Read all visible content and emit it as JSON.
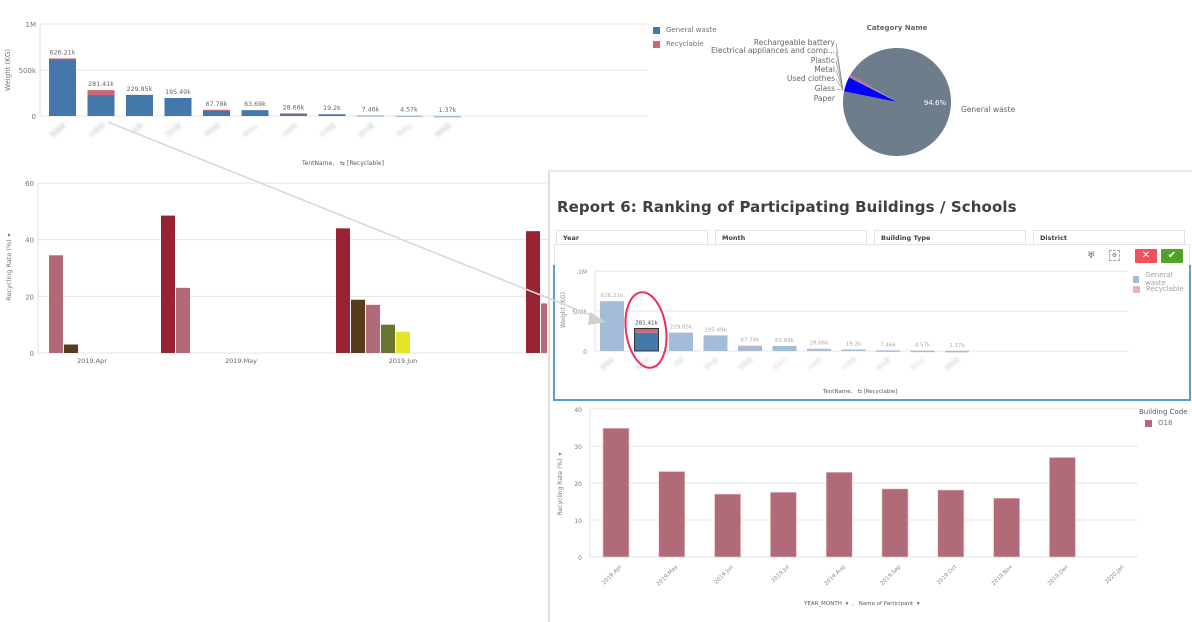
{
  "colors": {
    "general_waste": "#4477aa",
    "recyclable": "#cc6677",
    "general_waste_dim": "#a3bdd8",
    "recyclable_dim": "#e6b3bb",
    "pie_general": "#6e7d8c",
    "pie_paper": "#0000ff",
    "rate_bar": "#b06a78",
    "dark_red": "#962433",
    "dark_brown": "#563c1d",
    "olive": "#6b7532",
    "yellow": "#e3e329",
    "accent_blue": "#5b9ec9",
    "cancel_red": "#f0515a",
    "confirm_green": "#52a329",
    "highlight_circle": "#e8305a"
  },
  "chart_data": [
    {
      "id": "weight-by-tent",
      "type": "bar",
      "stacked": true,
      "title": "",
      "ylabel": "Weight (KG)",
      "xlabel": "TentName,",
      "xlabel_suffix": "[Recyclable]",
      "ylim": [
        0,
        1000000
      ],
      "yticks": [
        "0",
        "500k",
        "1M"
      ],
      "categories": [
        "(blurred)",
        "(blurred)",
        "(blurred)",
        "(blurred)",
        "(blurred)",
        "(blurred)",
        "(blurred)",
        "(blurred)",
        "(blurred)",
        "(blurred)",
        "(blurred)"
      ],
      "category_fragments": [
        "客服家",
        "台渠城",
        "花园",
        "活社家",
        "学院园",
        "市中心",
        "148校",
        "大学园",
        "道大厦",
        "市中心",
        "學院园"
      ],
      "totals": [
        626210,
        281410,
        229850,
        195490,
        67780,
        63690,
        28660,
        19200,
        7460,
        4570,
        1370
      ],
      "total_labels": [
        "626.21k",
        "281.41k",
        "229.85k",
        "195.49k",
        "67.78k",
        "63.69k",
        "28.66k",
        "19.2k",
        "7.46k",
        "4.57k",
        "1.37k"
      ],
      "series": [
        {
          "name": "General waste",
          "values": [
            614000,
            228000,
            229850,
            195490,
            65500,
            63690,
            26500,
            19200,
            7460,
            4570,
            1370
          ]
        },
        {
          "name": "Recyclable",
          "values": [
            12210,
            53410,
            0,
            0,
            2280,
            0,
            2160,
            0,
            0,
            0,
            0
          ]
        }
      ],
      "legend": [
        "General waste",
        "Recyclable"
      ],
      "legend_position": "right"
    },
    {
      "id": "category-pie",
      "type": "pie",
      "title": "Category Name",
      "slices": [
        {
          "label": "General waste",
          "value": 94.6,
          "value_label": "94.6%"
        },
        {
          "label": "Paper",
          "value": 4.4
        },
        {
          "label": "Glass",
          "value": 0.2
        },
        {
          "label": "Used clothes",
          "value": 0.2
        },
        {
          "label": "Metal",
          "value": 0.2
        },
        {
          "label": "Plastic",
          "value": 0.2
        },
        {
          "label": "Electrical appliances and comp...",
          "value": 0.1
        },
        {
          "label": "Rechargeable battery",
          "value": 0.1
        }
      ]
    },
    {
      "id": "rate-by-month-grouped",
      "type": "bar",
      "grouped": true,
      "ylabel": "Recycling Rate (%)",
      "ylim": [
        0,
        60
      ],
      "yticks": [
        "0",
        "20",
        "40",
        "60"
      ],
      "categories": [
        "2019.Apr",
        "2019.May",
        "2019.Jun"
      ],
      "groups": [
        {
          "category": "2019.Apr",
          "bars": [
            {
              "value": 34.5,
              "color": "rate_bar"
            },
            {
              "value": 3.0,
              "color": "dark_brown"
            }
          ]
        },
        {
          "category": "2019.May",
          "bars": [
            {
              "value": 48.5,
              "color": "dark_red"
            },
            {
              "value": 23.0,
              "color": "rate_bar"
            }
          ]
        },
        {
          "category": "2019.Jun",
          "bars": [
            {
              "value": 44.0,
              "color": "dark_red"
            },
            {
              "value": 18.8,
              "color": "dark_brown"
            },
            {
              "value": 17.0,
              "color": "rate_bar"
            },
            {
              "value": 10.0,
              "color": "olive"
            },
            {
              "value": 7.5,
              "color": "yellow"
            }
          ]
        },
        {
          "category": "",
          "bars": [
            {
              "value": 43.0,
              "color": "dark_red"
            },
            {
              "value": 17.5,
              "color": "rate_bar"
            }
          ]
        }
      ]
    },
    {
      "id": "weight-by-tent-selection",
      "type": "bar",
      "stacked": true,
      "ylabel": "Weight (KG)",
      "xlabel": "TentName,",
      "xlabel_suffix": "[Recyclable]",
      "ylim": [
        0,
        1000000
      ],
      "yticks": [
        "0",
        "500k",
        "1M"
      ],
      "selected_index": 1,
      "total_labels": [
        "626.21k",
        "281.41k",
        "229.85k",
        "195.49k",
        "67.78k",
        "63.69k",
        "28.66k",
        "19.2k",
        "7.46k",
        "4.57k",
        "1.37k"
      ],
      "legend": [
        "General waste",
        "Recyclable"
      ],
      "legend_position": "right"
    },
    {
      "id": "rate-by-month-o18",
      "type": "bar",
      "ylabel": "Recycling Rate (%)",
      "xlabel": "YEAR_MONTH",
      "xlabel2": "Name of Participant",
      "ylim": [
        0,
        40
      ],
      "yticks": [
        "0",
        "10",
        "20",
        "30",
        "40"
      ],
      "categories": [
        "2019.Apr",
        "2019.May",
        "2019.Jun",
        "2019.Jul",
        "2019.Aug",
        "2019.Sep",
        "2019.Oct",
        "2019.Nov",
        "2019.Dec",
        "2020.Jan"
      ],
      "values": [
        34.8,
        23.1,
        17.0,
        17.5,
        22.9,
        18.4,
        18.1,
        15.9,
        26.9,
        0
      ],
      "legend_title": "Building Code",
      "legend": [
        "O18"
      ],
      "legend_position": "right"
    }
  ],
  "report": {
    "title": "Report 6: Ranking of Participating Buildings / Schools",
    "filters": [
      "Year",
      "Month",
      "Building Type",
      "District"
    ]
  },
  "toolbar": {
    "lasso_icon": "lasso-icon",
    "selection_settings_icon": "selection-settings-icon",
    "cancel_label": "✕",
    "confirm_label": "✔"
  },
  "axis_menu_glyph": "▾"
}
